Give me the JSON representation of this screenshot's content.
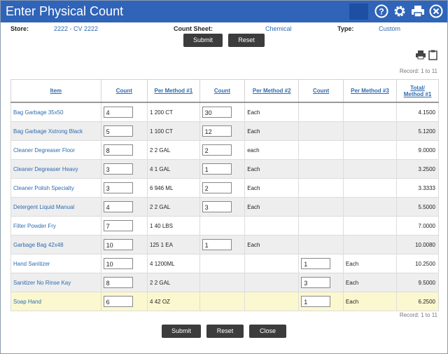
{
  "window": {
    "title": "Enter Physical Count"
  },
  "header": {
    "store_label": "Store:",
    "store_value": "2222 - CV 2222",
    "count_sheet_label": "Count Sheet:",
    "count_sheet_value": "Chemical",
    "type_label": "Type:",
    "type_value": "Custom"
  },
  "buttons": {
    "submit": "Submit",
    "reset": "Reset",
    "close": "Close"
  },
  "record_text": "Record: 1 to 11",
  "columns": [
    "Item",
    "Count",
    "Per Method #1",
    "Count",
    "Per Method #2",
    "Count",
    "Per Method #3",
    "Total/",
    "Method #1"
  ],
  "rows": [
    {
      "item": "Bag Garbage 35x50",
      "c1": "4",
      "m1": "1 200 CT",
      "c2": "30",
      "m2": "Each",
      "c3": "",
      "m3": "",
      "total": "4.1500"
    },
    {
      "item": "Bag Garbage Xstrong Black",
      "c1": "5",
      "m1": "1 100 CT",
      "c2": "12",
      "m2": "Each",
      "c3": "",
      "m3": "",
      "total": "5.1200"
    },
    {
      "item": "Cleaner Degreaser Floor",
      "c1": "8",
      "m1": "2 2 GAL",
      "c2": "2",
      "m2": "each",
      "c3": "",
      "m3": "",
      "total": "9.0000"
    },
    {
      "item": "Cleaner Degreaser Heavy",
      "c1": "3",
      "m1": "4 1 GAL",
      "c2": "1",
      "m2": "Each",
      "c3": "",
      "m3": "",
      "total": "3.2500"
    },
    {
      "item": "Cleaner Polish Specialty",
      "c1": "3",
      "m1": "6 946 ML",
      "c2": "2",
      "m2": "Each",
      "c3": "",
      "m3": "",
      "total": "3.3333"
    },
    {
      "item": "Detergent Liquid Manual",
      "c1": "4",
      "m1": "2 2 GAL",
      "c2": "3",
      "m2": "Each",
      "c3": "",
      "m3": "",
      "total": "5.5000"
    },
    {
      "item": "Filter Powder Fry",
      "c1": "7",
      "m1": "1 40 LBS",
      "c2": "",
      "m2": "",
      "c3": "",
      "m3": "",
      "total": "7.0000"
    },
    {
      "item": "Garbage Bag 42x48",
      "c1": "10",
      "m1": "125 1 EA",
      "c2": "1",
      "m2": "Each",
      "c3": "",
      "m3": "",
      "total": "10.0080"
    },
    {
      "item": "Hand Sanitizer",
      "c1": "10",
      "m1": "4 1200ML",
      "c2": "",
      "m2": "",
      "c3": "1",
      "m3": "Each",
      "total": "10.2500"
    },
    {
      "item": "Sanitizer No Rinse Kay",
      "c1": "8",
      "m1": "2 2 GAL",
      "c2": "",
      "m2": "",
      "c3": "3",
      "m3": "Each",
      "total": "9.5000"
    },
    {
      "item": "Soap Hand",
      "c1": "6",
      "m1": "4 42 OZ",
      "c2": "",
      "m2": "",
      "c3": "1",
      "m3": "Each",
      "total": "6.2500"
    }
  ]
}
